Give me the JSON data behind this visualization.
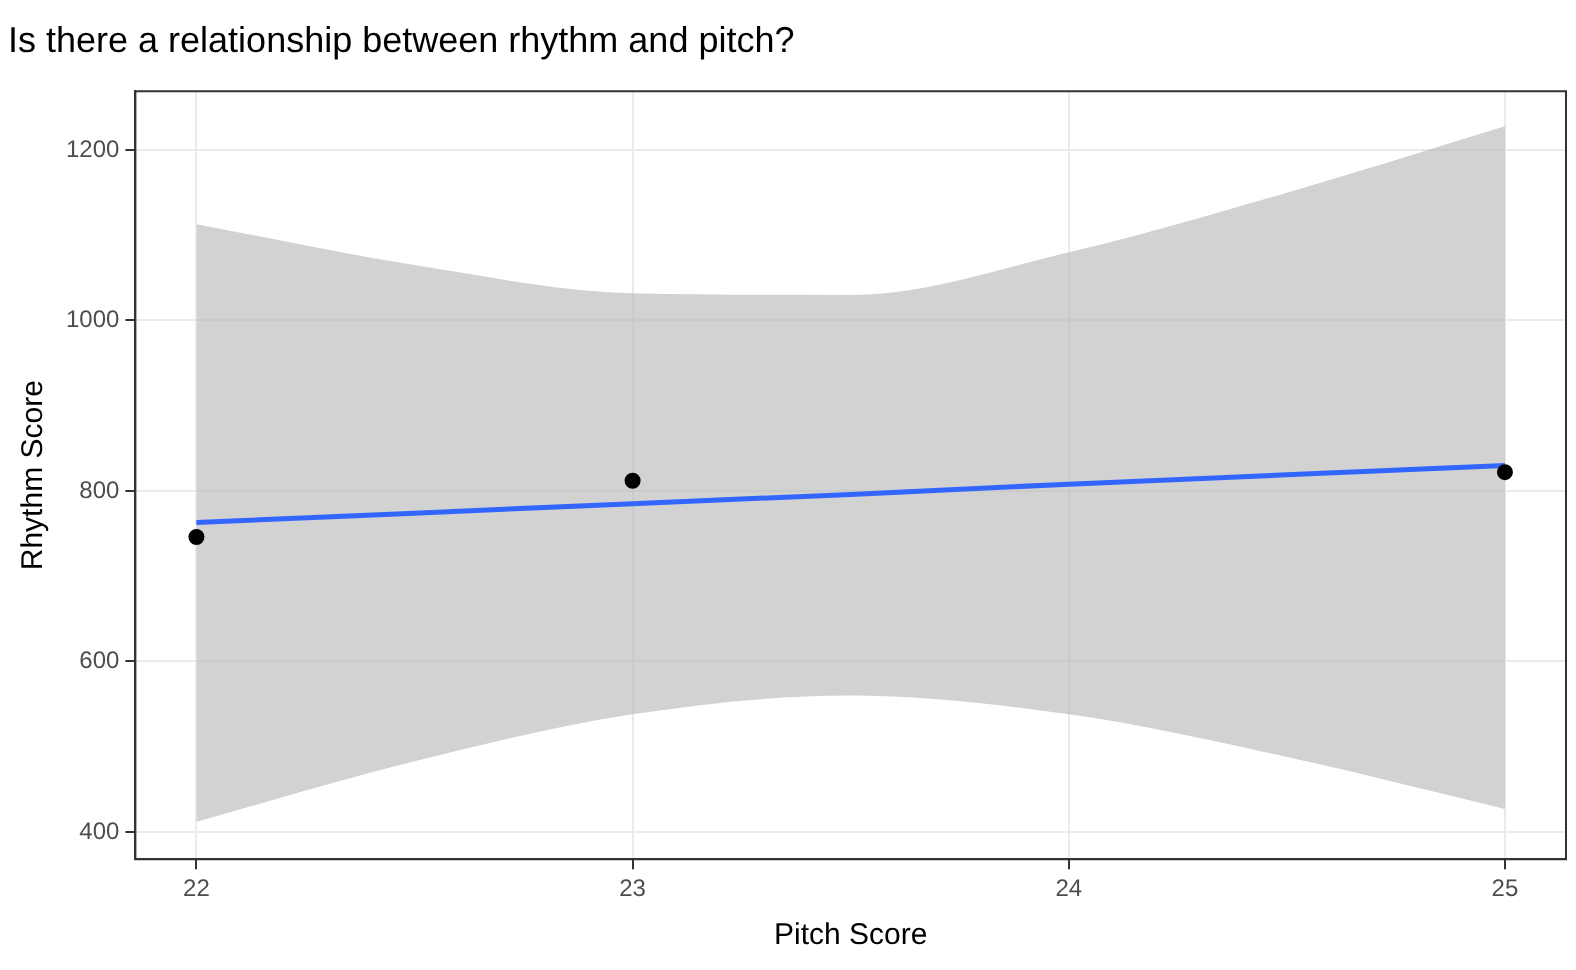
{
  "chart_data": {
    "type": "scatter",
    "title": "Is there a relationship between rhythm and pitch?",
    "xlabel": "Pitch Score",
    "ylabel": "Rhythm Score",
    "xlim": [
      21.86,
      25.14
    ],
    "ylim": [
      368,
      1269
    ],
    "xticks": [
      22,
      23,
      24,
      25
    ],
    "yticks": [
      400,
      600,
      800,
      1000,
      1200
    ],
    "grid": true,
    "legend": false,
    "series": [
      {
        "marker": "circle",
        "color": "#000000",
        "x": [
          22,
          23,
          25
        ],
        "values": [
          746,
          812,
          822
        ]
      },
      {
        "type": "line",
        "marker": "none",
        "color": "#3366ff",
        "x": [
          22,
          22.5,
          23,
          23.5,
          24,
          24.5,
          25
        ],
        "values": [
          763,
          774,
          785,
          796,
          808,
          819,
          830
        ],
        "lower": [
          412,
          483,
          538,
          560,
          538,
          488,
          427
        ],
        "upper": [
          1113,
          1065,
          1032,
          1030,
          1080,
          1150,
          1228
        ]
      }
    ]
  }
}
